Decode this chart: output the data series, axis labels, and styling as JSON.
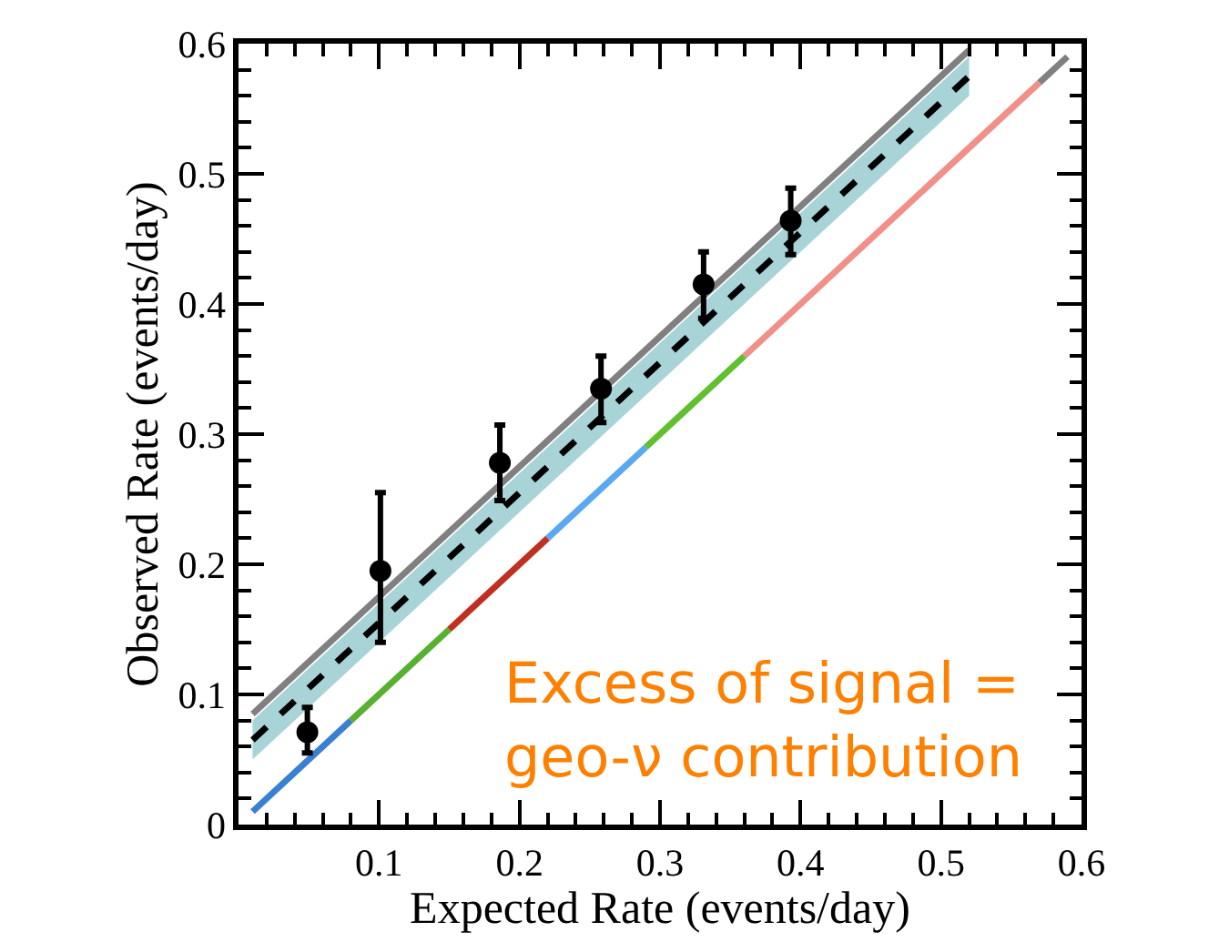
{
  "chart_data": {
    "type": "line",
    "xlabel": "Expected Rate (events/day)",
    "ylabel": "Observed Rate (events/day)",
    "xlim": [
      0,
      0.6
    ],
    "ylim": [
      0,
      0.6
    ],
    "xticks": [
      {
        "value": 0,
        "label": null
      },
      0.1,
      0.2,
      0.3,
      0.4,
      0.5,
      0.6
    ],
    "yticks": [
      0,
      0.1,
      0.2,
      0.3,
      0.4,
      0.5,
      0.6
    ],
    "marker": "none",
    "series": [
      {
        "x": [
          0.01,
          0.52
        ],
        "values": [
          0.085,
          0.595
        ],
        "color": "#808080"
      },
      {
        "x": [
          0.01,
          0.52
        ],
        "values": [
          0.065,
          0.575
        ],
        "lower": [
          0.05,
          0.56
        ],
        "upper": [
          0.08,
          0.59
        ],
        "color": "#000000",
        "line_style": "dashed"
      },
      {
        "x": [
          0.57,
          0.59
        ],
        "values": [
          0.57,
          0.59
        ],
        "color": "#808080"
      },
      {
        "x": [
          0.01,
          0.08
        ],
        "values": [
          0.01,
          0.08
        ],
        "color": "#3a80d0"
      },
      {
        "x": [
          0.08,
          0.15
        ],
        "values": [
          0.08,
          0.15
        ],
        "color": "#58b030"
      },
      {
        "x": [
          0.15,
          0.22
        ],
        "values": [
          0.15,
          0.22
        ],
        "color": "#c03020"
      },
      {
        "x": [
          0.22,
          0.29
        ],
        "values": [
          0.22,
          0.29
        ],
        "color": "#5aa8f0"
      },
      {
        "x": [
          0.29,
          0.36
        ],
        "values": [
          0.29,
          0.36
        ],
        "color": "#60c030"
      },
      {
        "x": [
          0.36,
          0.57
        ],
        "values": [
          0.36,
          0.57
        ],
        "color": "#f09088"
      },
      {
        "type": "scatter",
        "marker": "circle",
        "x": [
          0.049,
          0.101,
          0.186,
          0.258,
          0.331,
          0.393
        ],
        "values": [
          0.071,
          0.195,
          0.278,
          0.335,
          0.415,
          0.464
        ],
        "color": "#000000",
        "errors": [
          [
            0.055,
            0.09
          ],
          [
            0.14,
            0.255
          ],
          [
            0.249,
            0.307
          ],
          [
            0.309,
            0.36
          ],
          [
            0.389,
            0.44
          ],
          [
            0.438,
            0.489
          ]
        ]
      }
    ],
    "annotations": [
      "Excess of signal =\ngeo-ν contribution"
    ]
  }
}
